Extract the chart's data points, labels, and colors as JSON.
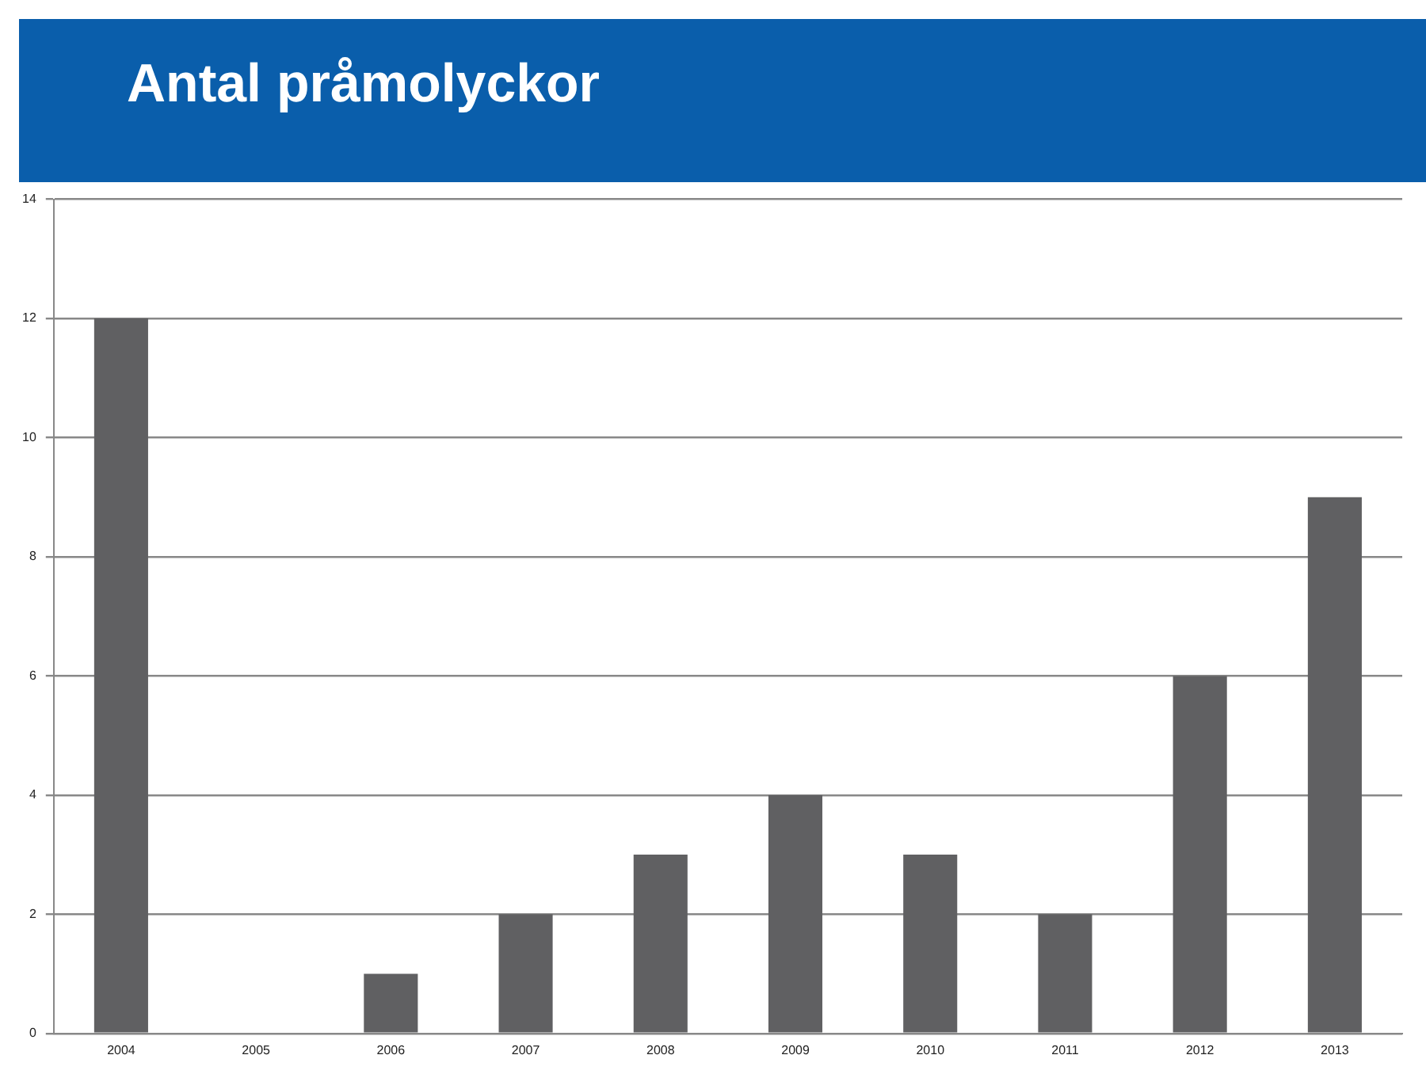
{
  "chart_data": {
    "type": "bar",
    "title": "Antal pråmolyckor",
    "categories": [
      "2004",
      "2005",
      "2006",
      "2007",
      "2008",
      "2009",
      "2010",
      "2011",
      "2012",
      "2013"
    ],
    "values": [
      12,
      0,
      1,
      2,
      3,
      4,
      3,
      2,
      6,
      9
    ],
    "color": "#606062",
    "ylim": [
      0,
      14
    ],
    "yticks": [
      0,
      2,
      4,
      6,
      8,
      10,
      12,
      14
    ],
    "grid": "y",
    "legend": false
  }
}
